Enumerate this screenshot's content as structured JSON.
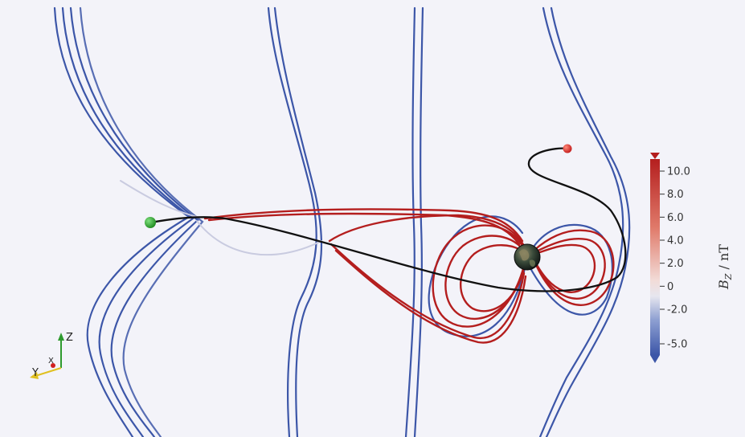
{
  "colors": {
    "background": "#f3f3f9",
    "line_negative": "#3c56a8",
    "line_neutral": "#dcdce6",
    "line_positive": "#b41e1e",
    "trajectory": "#111111",
    "start_marker": "#2a9d2a",
    "end_marker": "#d42a2a",
    "axis_z": "#2e9a2e",
    "axis_y": "#e0c020",
    "axis_x": "#d02020"
  },
  "colorbar": {
    "title_main": "B",
    "title_sub": "Z",
    "title_unit": " / nT",
    "ticks": [
      {
        "label": "10.0",
        "value": 10
      },
      {
        "label": "8.0",
        "value": 8
      },
      {
        "label": "6.0",
        "value": 6
      },
      {
        "label": "4.0",
        "value": 4
      },
      {
        "label": "2.0",
        "value": 2
      },
      {
        "label": "0",
        "value": 0
      },
      {
        "label": "-2.0",
        "value": -2
      },
      {
        "label": "-5.0",
        "value": -5
      }
    ]
  },
  "axes_triad": {
    "z_label": "Z",
    "y_label": "Y",
    "x_label": "X"
  },
  "icons": {
    "earth": "earth-icon",
    "start": "start-marker-icon",
    "end": "end-marker-icon"
  }
}
